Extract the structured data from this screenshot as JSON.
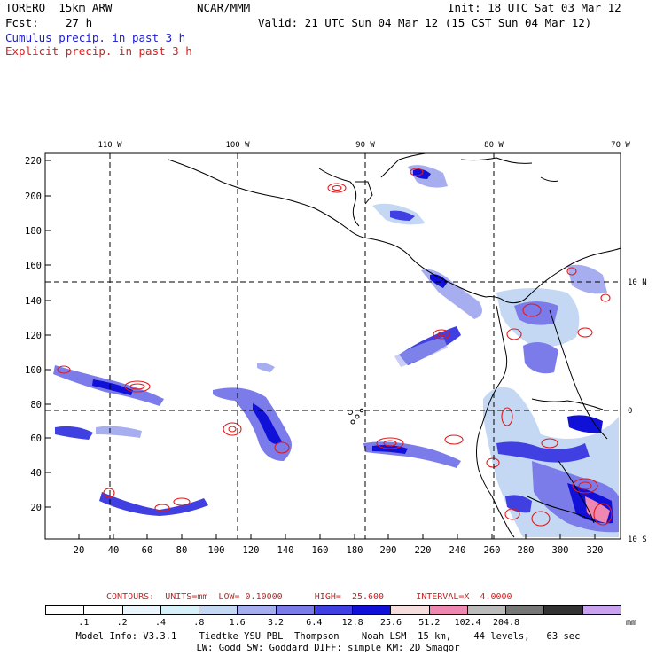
{
  "header": {
    "model": "TORERO  15km ARW",
    "org": "NCAR/MMM",
    "init": "Init: 18 UTC Sat 03 Mar 12",
    "fcst_label": "Fcst:",
    "fcst_value": "27 h",
    "valid": "Valid: 21 UTC Sun 04 Mar 12 (15 CST Sun 04 Mar 12)",
    "cumulus": "Cumulus precip. in past 3 h",
    "explicit": "Explicit precip. in past 3 h"
  },
  "map": {
    "lon_labels": [
      "110 W",
      "100 W",
      "90 W",
      "80 W",
      "70 W"
    ],
    "lat_labels": [
      "10 N",
      "0",
      "10 S"
    ],
    "y_ticks": [
      "220",
      "200",
      "180",
      "160",
      "140",
      "120",
      "100",
      "80",
      "60",
      "40",
      "20"
    ],
    "x_ticks": [
      "20",
      "40",
      "60",
      "80",
      "100",
      "120",
      "140",
      "160",
      "180",
      "200",
      "220",
      "240",
      "260",
      "280",
      "300",
      "320"
    ]
  },
  "legend": {
    "contours": "CONTOURS:  UNITS=mm  LOW= 0.10000      HIGH=  25.600      INTERVAL=X  4.0000",
    "colorbar_colors": [
      "#ffffff",
      "#ffffff",
      "#eaf6fb",
      "#d8f0f8",
      "#c4d8f4",
      "#a6aef0",
      "#7b7cea",
      "#4040e2",
      "#1010d8",
      "#f6dddd",
      "#ef88b0",
      "#bbbbbb",
      "#777777",
      "#333333",
      "#c9a3ef"
    ],
    "colorbar_labels": [
      ".1",
      ".2",
      ".4",
      ".8",
      "1.6",
      "3.2",
      "6.4",
      "12.8",
      "25.6",
      "51.2",
      "102.4",
      "204.8"
    ],
    "unit": "mm"
  },
  "footer": {
    "line1": "Model Info: V3.3.1    Tiedtke YSU PBL  Thompson    Noah LSM  15 km,    44 levels,   63 sec",
    "line2": "LW: Godd SW: Goddard DIFF: simple KM: 2D Smagor"
  },
  "colors": {
    "blue_text": "#1c1ccf",
    "red_text": "#e01a1a",
    "precip_light": "#c4d8f4",
    "precip_mid": "#7b7cea",
    "precip_heavy": "#1010d8",
    "contour": "#e01a1a"
  }
}
